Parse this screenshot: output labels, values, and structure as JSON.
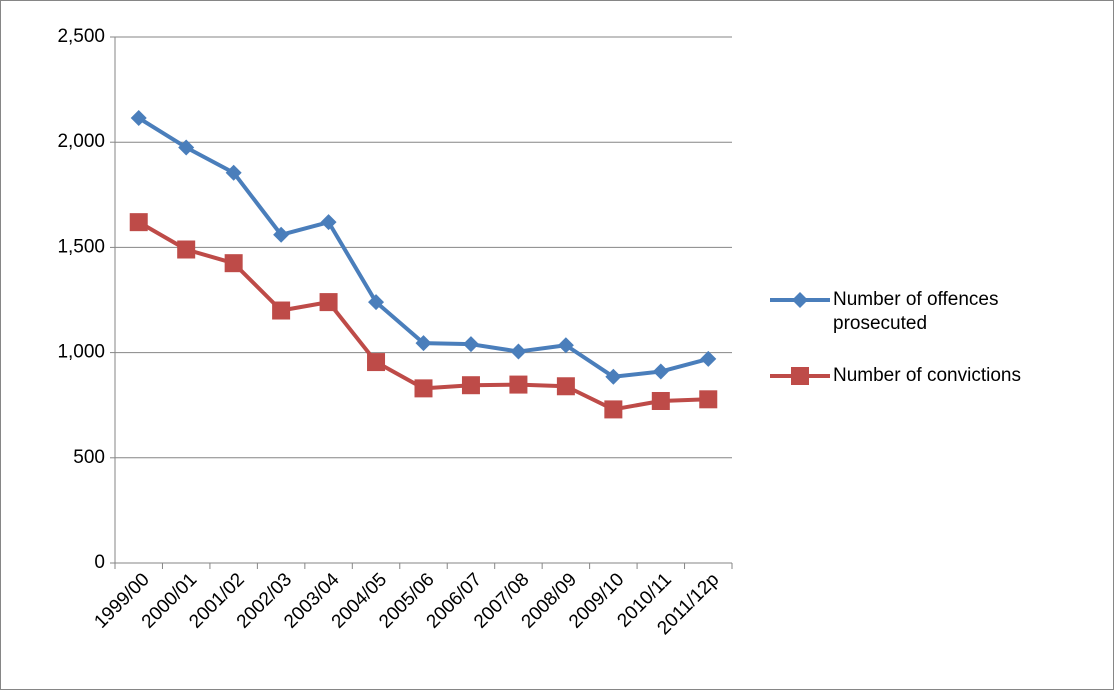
{
  "chart_data": {
    "type": "line",
    "categories": [
      "1999/00",
      "2000/01",
      "2001/02",
      "2002/03",
      "2003/04",
      "2004/05",
      "2005/06",
      "2006/07",
      "2007/08",
      "2008/09",
      "2009/10",
      "2010/11",
      "2011/12p"
    ],
    "series": [
      {
        "name": "Number of offences prosecuted",
        "color": "#4a7ebb",
        "marker": "diamond",
        "values": [
          2115,
          1975,
          1855,
          1560,
          1620,
          1240,
          1045,
          1040,
          1005,
          1035,
          885,
          910,
          970
        ]
      },
      {
        "name": "Number of convictions",
        "color": "#be4b48",
        "marker": "square",
        "values": [
          1620,
          1490,
          1425,
          1200,
          1240,
          955,
          830,
          845,
          848,
          840,
          730,
          770,
          778
        ]
      }
    ],
    "ylim": [
      0,
      2500
    ],
    "yticks": [
      0,
      500,
      {
        "value": 1000,
        "label": "1,000"
      },
      {
        "value": 1500,
        "label": "1,500"
      },
      {
        "value": 2000,
        "label": "2,000"
      },
      {
        "value": 2500,
        "label": "2,500"
      }
    ],
    "grid": true,
    "legend": "right"
  }
}
